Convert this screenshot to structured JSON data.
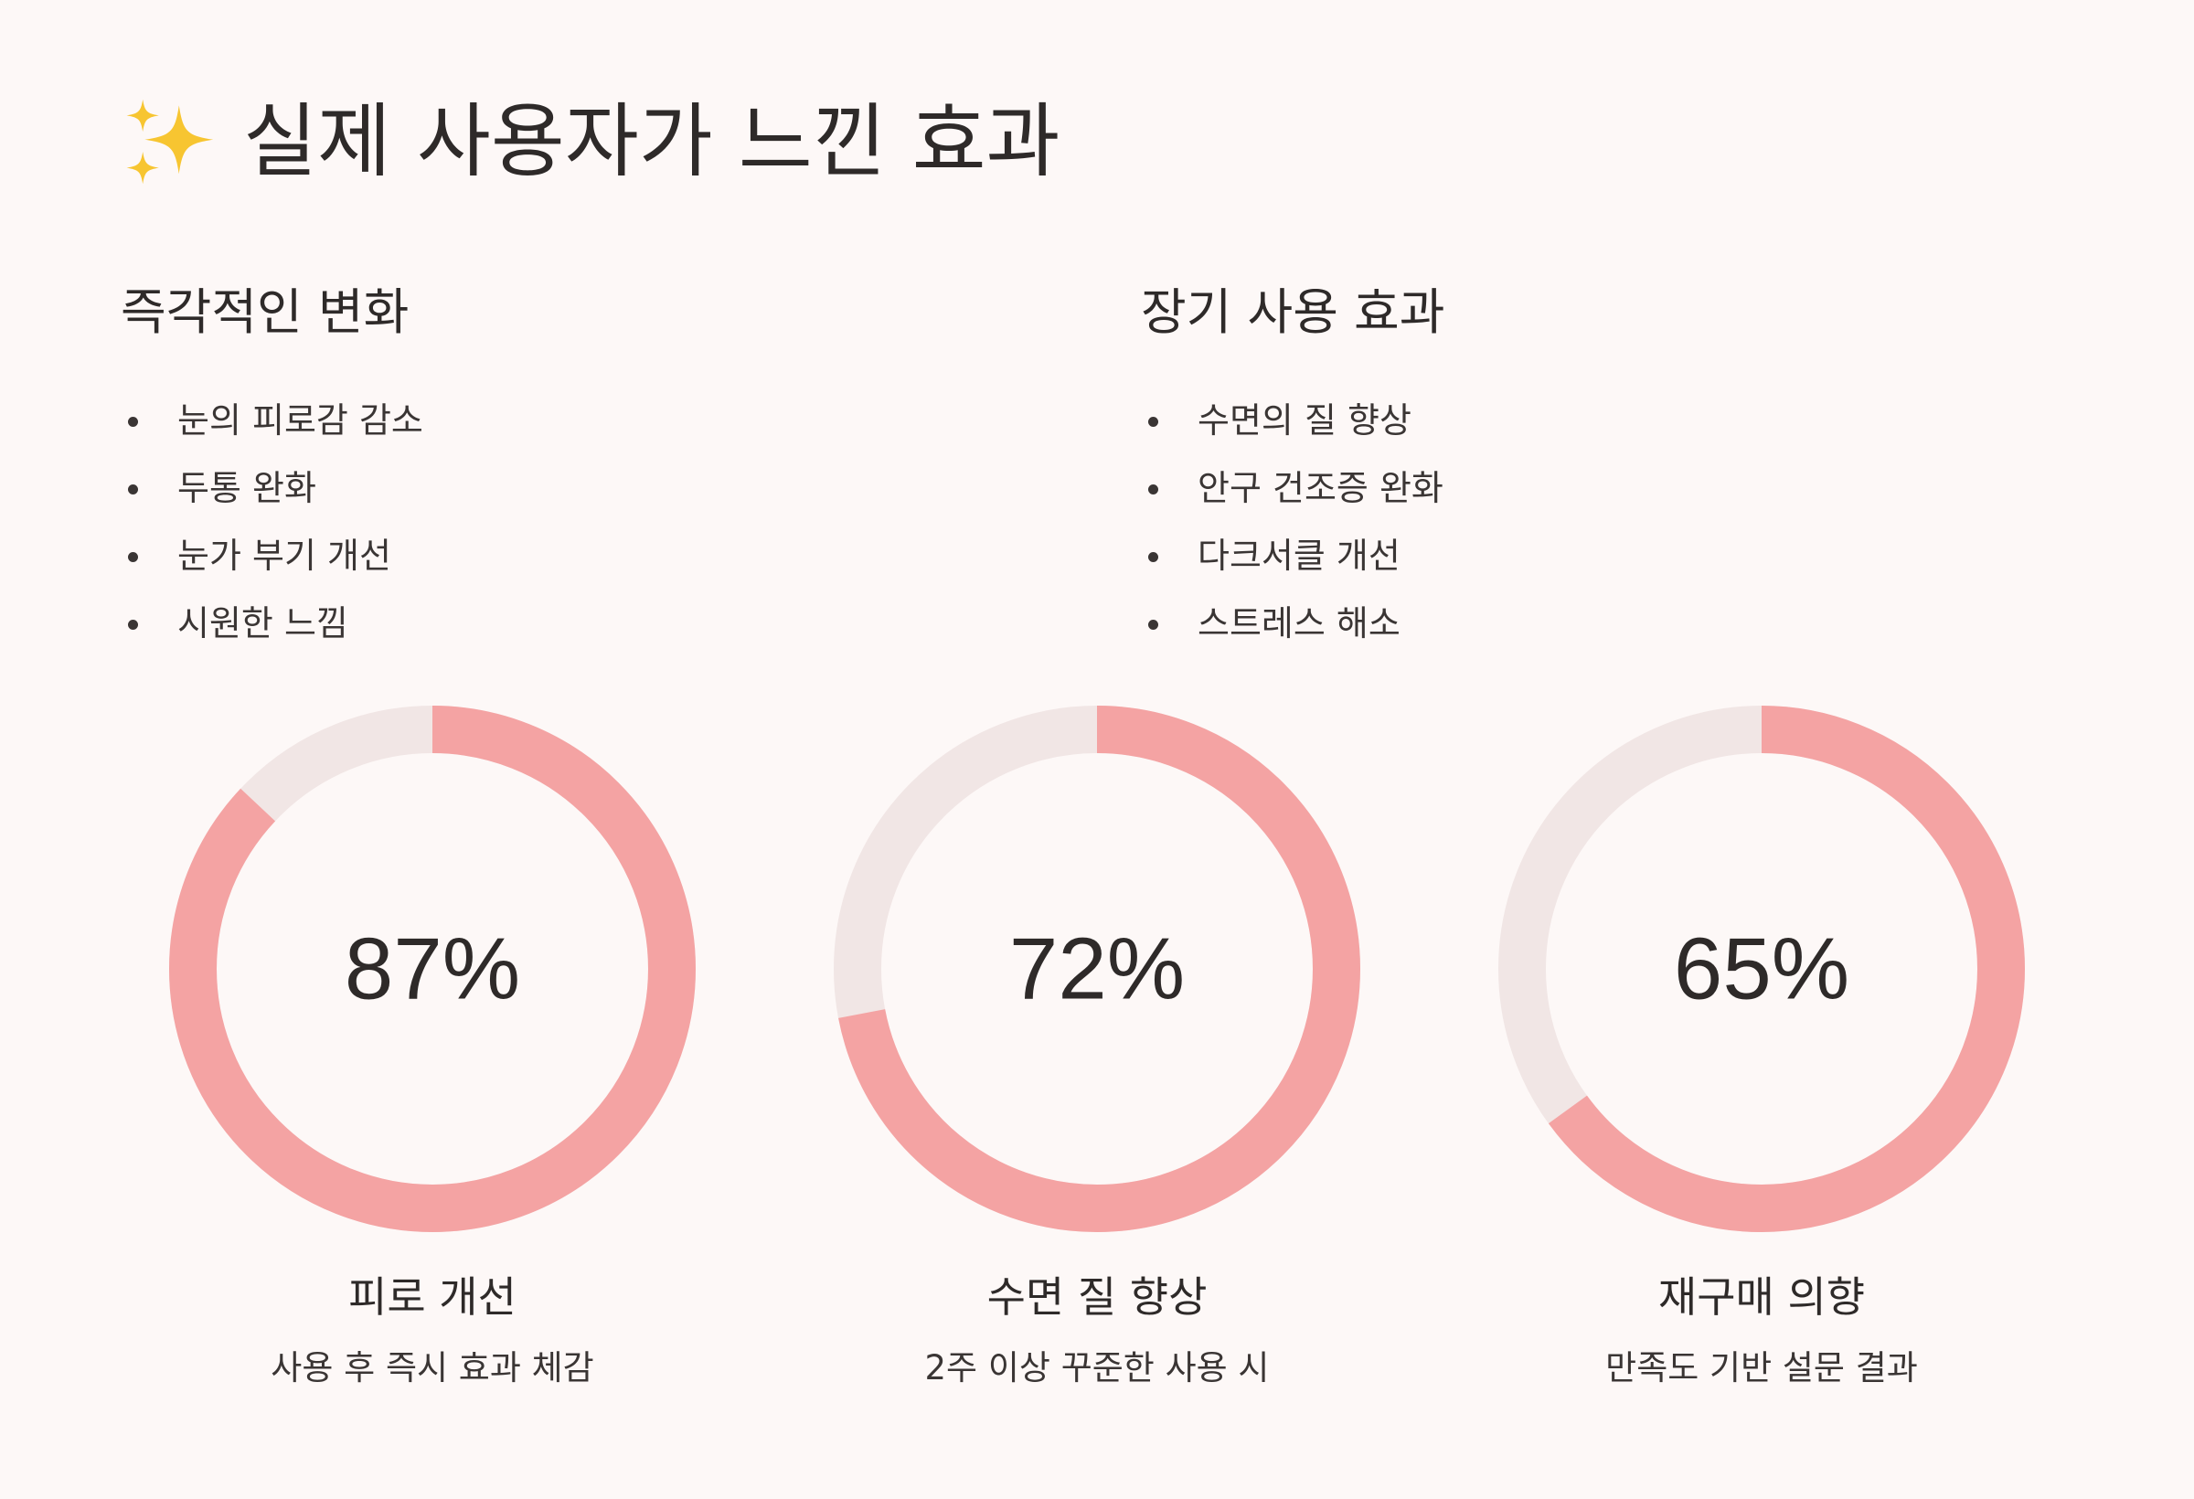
{
  "title": "실제 사용자가 느낀 효과",
  "title_icon": "sparkles-icon",
  "colors": {
    "background": "#fdf8f7",
    "accent": "#f4a3a3",
    "track": "#f1e6e5",
    "text": "#2e2a29"
  },
  "sections": [
    {
      "heading": "즉각적인 변화",
      "items": [
        "눈의 피로감 감소",
        "두통 완화",
        "눈가 부기 개선",
        "시원한 느낌"
      ]
    },
    {
      "heading": "장기 사용 효과",
      "items": [
        "수면의 질 향상",
        "안구 건조증 완화",
        "다크서클 개선",
        "스트레스 해소"
      ]
    }
  ],
  "chart_data": [
    {
      "type": "pie",
      "value": 87,
      "display": "87%",
      "label": "피로 개선",
      "sublabel": "사용 후 즉시 효과 체감"
    },
    {
      "type": "pie",
      "value": 72,
      "display": "72%",
      "label": "수면 질 향상",
      "sublabel": "2주 이상 꾸준한 사용 시"
    },
    {
      "type": "pie",
      "value": 65,
      "display": "65%",
      "label": "재구매 의향",
      "sublabel": "만족도 기반 설문 결과"
    }
  ]
}
